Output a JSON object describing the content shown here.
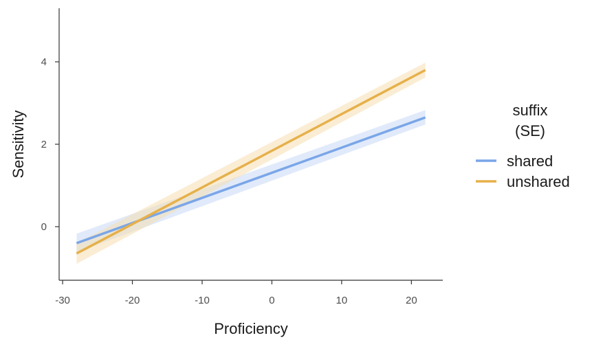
{
  "chart_data": {
    "type": "line",
    "xlabel": "Proficiency",
    "ylabel": "Sensitivity",
    "xlim": [
      -30.5,
      24.5
    ],
    "ylim": [
      -1.3,
      5.3
    ],
    "x_ticks": [
      -30,
      -20,
      -10,
      0,
      10,
      20
    ],
    "y_ticks": [
      0,
      2,
      4
    ],
    "x_tick_labels": [
      "-30",
      "-20",
      "-10",
      "0",
      "10",
      "20"
    ],
    "y_tick_labels": [
      "0",
      "2",
      "4"
    ],
    "grid": false,
    "legend": {
      "title_lines": [
        "suffix",
        "(SE)"
      ],
      "placement": "right"
    },
    "series": [
      {
        "name": "shared",
        "color": "#7aa6e8",
        "band_color": "#c9d9f5",
        "x": [
          -28,
          22
        ],
        "y": [
          -0.4,
          2.65
        ],
        "se_lower": [
          -0.62,
          2.48
        ],
        "se_upper": [
          -0.17,
          2.83
        ]
      },
      {
        "name": "unshared",
        "color": "#e6b04a",
        "band_color": "#f6dfb1",
        "x": [
          -28,
          22
        ],
        "y": [
          -0.65,
          3.8
        ],
        "se_lower": [
          -0.9,
          3.62
        ],
        "se_upper": [
          -0.4,
          3.98
        ]
      }
    ]
  }
}
